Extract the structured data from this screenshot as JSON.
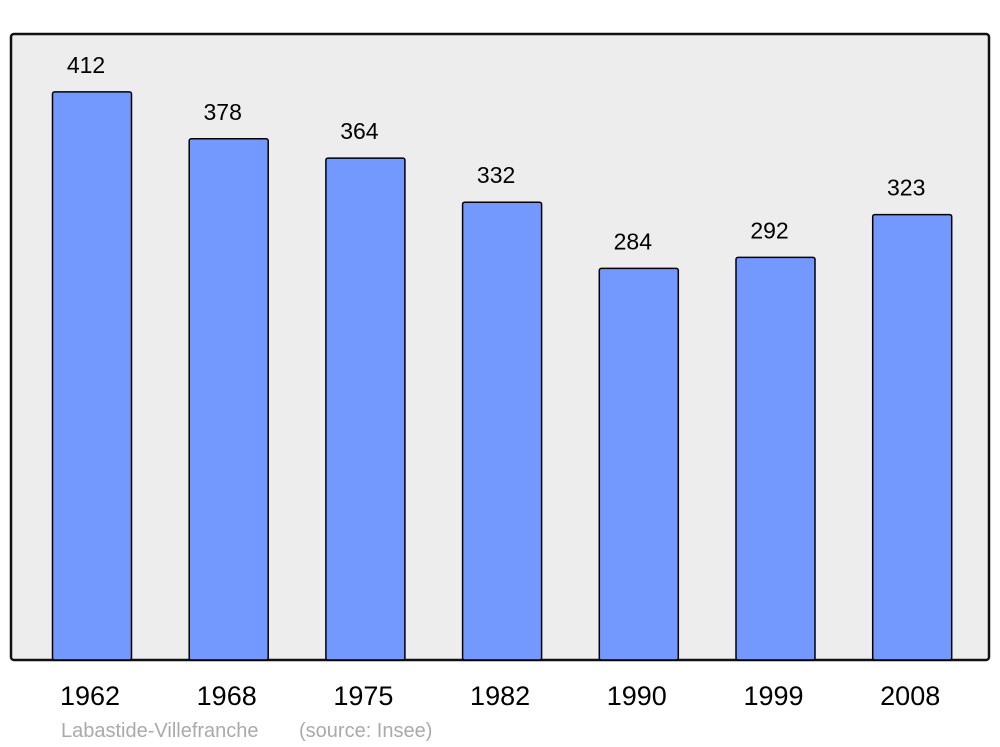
{
  "chart_data": {
    "type": "bar",
    "title": "",
    "xlabel": "",
    "ylabel": "",
    "categories": [
      "1962",
      "1968",
      "1975",
      "1982",
      "1990",
      "1999",
      "2008"
    ],
    "values": [
      412,
      378,
      364,
      332,
      284,
      292,
      323
    ],
    "ylim": [
      0,
      454
    ],
    "grid": false,
    "data_labels": true,
    "colors": {
      "bar": "#7399ff",
      "bar_stroke": "#000000",
      "plot_background": "#ededed"
    }
  },
  "footer": {
    "place": "Labastide-Villefranche",
    "source": "(source: Insee)"
  }
}
